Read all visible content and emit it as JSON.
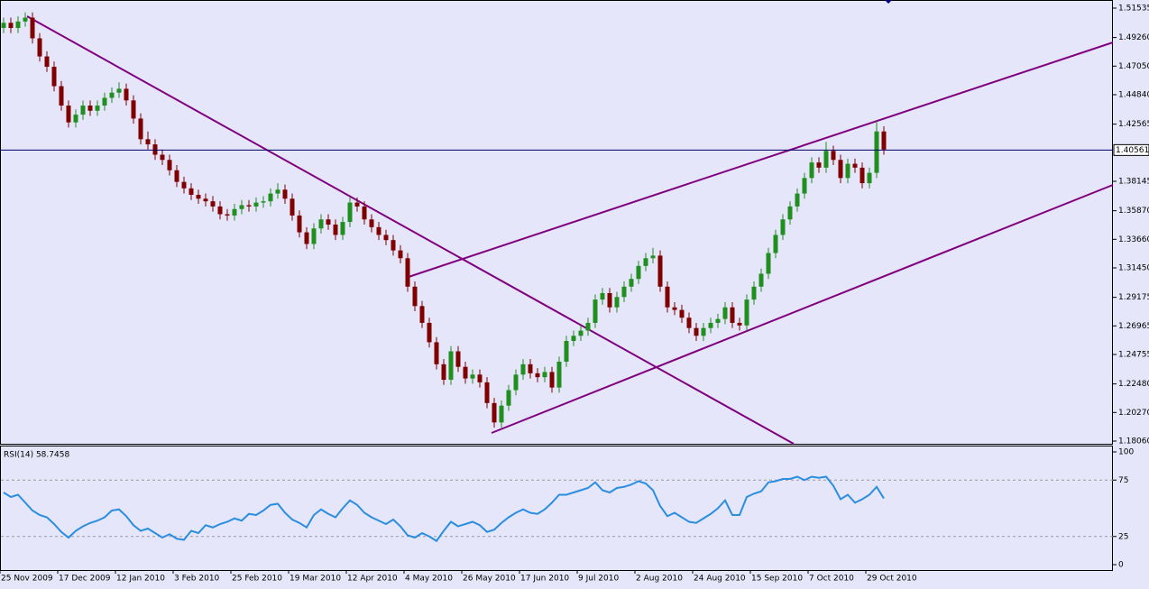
{
  "chart_data": [
    {
      "type": "candlestick",
      "bull_color": "#1f8f1f",
      "bear_color": "#800000",
      "current_price": 1.40561,
      "current_price_color": "#000066",
      "ylim": [
        1.17851,
        1.52163
      ],
      "yticks": [
        1.51535,
        {
          "value": 1.4926,
          "label": "1.49260"
        },
        {
          "value": 1.4705,
          "label": "1.47050"
        },
        {
          "value": 1.4484,
          "label": "1.44840"
        },
        1.42565,
        1.38145,
        {
          "value": 1.3587,
          "label": "1.35870"
        },
        {
          "value": 1.3366,
          "label": "1.33660"
        },
        {
          "value": 1.3145,
          "label": "1.31450"
        },
        1.29175,
        1.26965,
        1.24755,
        {
          "value": 1.2248,
          "label": "1.22480"
        },
        {
          "value": 1.2027,
          "label": "1.20270"
        },
        {
          "value": 1.1806,
          "label": "1.18060"
        }
      ],
      "xticks": [
        {
          "value": -0.5,
          "label": "25 Nov 2009"
        },
        {
          "value": 7.5,
          "label": "17 Dec 2009"
        },
        {
          "value": 15.5,
          "label": "12 Jan 2010"
        },
        {
          "value": 23.5,
          "label": "3 Feb 2010"
        },
        {
          "value": 31.5,
          "label": "25 Feb 2010"
        },
        {
          "value": 39.5,
          "label": "19 Mar 2010"
        },
        {
          "value": 47.5,
          "label": "12 Apr 2010"
        },
        {
          "value": 55.5,
          "label": "4 May 2010"
        },
        {
          "value": 63.5,
          "label": "26 May 2010"
        },
        {
          "value": 71.5,
          "label": "17 Jun 2010"
        },
        {
          "value": 79.5,
          "label": "9 Jul 2010"
        },
        {
          "value": 87.5,
          "label": "2 Aug 2010"
        },
        {
          "value": 95.5,
          "label": "24 Aug 2010"
        },
        {
          "value": 103.5,
          "label": "15 Sep 2010"
        },
        {
          "value": 111.5,
          "label": "7 Oct 2010"
        },
        {
          "value": 119.5,
          "label": "29 Oct 2010"
        }
      ],
      "ohlc": [
        [
          1.5,
          1.508,
          1.496,
          1.504
        ],
        [
          1.504,
          1.508,
          1.496,
          1.5
        ],
        [
          1.5,
          1.509,
          1.496,
          1.505
        ],
        [
          1.505,
          1.512,
          1.501,
          1.508
        ],
        [
          1.508,
          1.512,
          1.488,
          1.492
        ],
        [
          1.492,
          1.496,
          1.474,
          1.478
        ],
        [
          1.478,
          1.482,
          1.466,
          1.47
        ],
        [
          1.47,
          1.474,
          1.451,
          1.455
        ],
        [
          1.455,
          1.459,
          1.436,
          1.44
        ],
        [
          1.44,
          1.444,
          1.423,
          1.427
        ],
        [
          1.427,
          1.437,
          1.423,
          1.433
        ],
        [
          1.433,
          1.444,
          1.429,
          1.44
        ],
        [
          1.44,
          1.444,
          1.432,
          1.436
        ],
        [
          1.436,
          1.444,
          1.432,
          1.44
        ],
        [
          1.44,
          1.45,
          1.436,
          1.446
        ],
        [
          1.446,
          1.454,
          1.442,
          1.45
        ],
        [
          1.45,
          1.458,
          1.446,
          1.453
        ],
        [
          1.453,
          1.457,
          1.44,
          1.444
        ],
        [
          1.444,
          1.448,
          1.426,
          1.43
        ],
        [
          1.43,
          1.434,
          1.41,
          1.414
        ],
        [
          1.414,
          1.42,
          1.406,
          1.41
        ],
        [
          1.41,
          1.414,
          1.398,
          1.402
        ],
        [
          1.402,
          1.406,
          1.394,
          1.398
        ],
        [
          1.398,
          1.402,
          1.386,
          1.39
        ],
        [
          1.39,
          1.394,
          1.377,
          1.381
        ],
        [
          1.381,
          1.385,
          1.372,
          1.376
        ],
        [
          1.376,
          1.38,
          1.367,
          1.371
        ],
        [
          1.371,
          1.375,
          1.364,
          1.368
        ],
        [
          1.368,
          1.372,
          1.362,
          1.366
        ],
        [
          1.366,
          1.37,
          1.358,
          1.362
        ],
        [
          1.362,
          1.366,
          1.352,
          1.356
        ],
        [
          1.356,
          1.36,
          1.351,
          1.355
        ],
        [
          1.355,
          1.364,
          1.351,
          1.36
        ],
        [
          1.36,
          1.367,
          1.356,
          1.363
        ],
        [
          1.363,
          1.367,
          1.358,
          1.362
        ],
        [
          1.362,
          1.369,
          1.358,
          1.365
        ],
        [
          1.365,
          1.37,
          1.361,
          1.366
        ],
        [
          1.366,
          1.376,
          1.362,
          1.372
        ],
        [
          1.372,
          1.38,
          1.368,
          1.375
        ],
        [
          1.375,
          1.379,
          1.364,
          1.368
        ],
        [
          1.368,
          1.372,
          1.351,
          1.355
        ],
        [
          1.355,
          1.359,
          1.338,
          1.342
        ],
        [
          1.342,
          1.346,
          1.329,
          1.333
        ],
        [
          1.333,
          1.349,
          1.329,
          1.345
        ],
        [
          1.345,
          1.356,
          1.341,
          1.352
        ],
        [
          1.352,
          1.356,
          1.344,
          1.348
        ],
        [
          1.348,
          1.352,
          1.336,
          1.34
        ],
        [
          1.34,
          1.354,
          1.336,
          1.35
        ],
        [
          1.35,
          1.369,
          1.346,
          1.365
        ],
        [
          1.365,
          1.369,
          1.358,
          1.362
        ],
        [
          1.362,
          1.366,
          1.348,
          1.352
        ],
        [
          1.352,
          1.356,
          1.342,
          1.346
        ],
        [
          1.346,
          1.35,
          1.336,
          1.34
        ],
        [
          1.34,
          1.344,
          1.332,
          1.336
        ],
        [
          1.336,
          1.34,
          1.324,
          1.328
        ],
        [
          1.328,
          1.332,
          1.318,
          1.322
        ],
        [
          1.322,
          1.326,
          1.296,
          1.3
        ],
        [
          1.3,
          1.304,
          1.281,
          1.285
        ],
        [
          1.285,
          1.289,
          1.268,
          1.272
        ],
        [
          1.272,
          1.276,
          1.253,
          1.257
        ],
        [
          1.257,
          1.261,
          1.236,
          1.24
        ],
        [
          1.24,
          1.244,
          1.224,
          1.228
        ],
        [
          1.228,
          1.254,
          1.224,
          1.25
        ],
        [
          1.25,
          1.254,
          1.234,
          1.238
        ],
        [
          1.238,
          1.242,
          1.225,
          1.229
        ],
        [
          1.229,
          1.236,
          1.225,
          1.232
        ],
        [
          1.232,
          1.236,
          1.222,
          1.226
        ],
        [
          1.226,
          1.23,
          1.206,
          1.21
        ],
        [
          1.21,
          1.214,
          1.191,
          1.195
        ],
        [
          1.195,
          1.212,
          1.191,
          1.208
        ],
        [
          1.208,
          1.224,
          1.204,
          1.22
        ],
        [
          1.22,
          1.236,
          1.216,
          1.232
        ],
        [
          1.232,
          1.244,
          1.228,
          1.24
        ],
        [
          1.24,
          1.244,
          1.229,
          1.233
        ],
        [
          1.233,
          1.237,
          1.226,
          1.23
        ],
        [
          1.23,
          1.238,
          1.226,
          1.234
        ],
        [
          1.234,
          1.238,
          1.218,
          1.222
        ],
        [
          1.222,
          1.246,
          1.218,
          1.242
        ],
        [
          1.242,
          1.262,
          1.238,
          1.258
        ],
        [
          1.258,
          1.266,
          1.254,
          1.262
        ],
        [
          1.262,
          1.27,
          1.258,
          1.266
        ],
        [
          1.266,
          1.276,
          1.262,
          1.272
        ],
        [
          1.272,
          1.294,
          1.268,
          1.29
        ],
        [
          1.29,
          1.299,
          1.286,
          1.295
        ],
        [
          1.295,
          1.299,
          1.28,
          1.284
        ],
        [
          1.284,
          1.296,
          1.28,
          1.292
        ],
        [
          1.292,
          1.304,
          1.288,
          1.3
        ],
        [
          1.3,
          1.31,
          1.296,
          1.306
        ],
        [
          1.306,
          1.32,
          1.302,
          1.316
        ],
        [
          1.316,
          1.326,
          1.312,
          1.322
        ],
        [
          1.322,
          1.33,
          1.318,
          1.324
        ],
        [
          1.324,
          1.328,
          1.296,
          1.3
        ],
        [
          1.3,
          1.304,
          1.28,
          1.284
        ],
        [
          1.284,
          1.288,
          1.278,
          1.282
        ],
        [
          1.282,
          1.286,
          1.272,
          1.276
        ],
        [
          1.276,
          1.28,
          1.264,
          1.268
        ],
        [
          1.268,
          1.272,
          1.258,
          1.262
        ],
        [
          1.262,
          1.272,
          1.258,
          1.268
        ],
        [
          1.268,
          1.276,
          1.264,
          1.272
        ],
        [
          1.272,
          1.279,
          1.268,
          1.275
        ],
        [
          1.275,
          1.288,
          1.271,
          1.284
        ],
        [
          1.284,
          1.288,
          1.268,
          1.272
        ],
        [
          1.272,
          1.276,
          1.266,
          1.27
        ],
        [
          1.27,
          1.294,
          1.266,
          1.29
        ],
        [
          1.29,
          1.304,
          1.286,
          1.3
        ],
        [
          1.3,
          1.314,
          1.296,
          1.31
        ],
        [
          1.31,
          1.33,
          1.306,
          1.326
        ],
        [
          1.326,
          1.344,
          1.322,
          1.34
        ],
        [
          1.34,
          1.356,
          1.336,
          1.352
        ],
        [
          1.352,
          1.366,
          1.348,
          1.362
        ],
        [
          1.362,
          1.376,
          1.358,
          1.372
        ],
        [
          1.372,
          1.388,
          1.368,
          1.384
        ],
        [
          1.384,
          1.4,
          1.38,
          1.396
        ],
        [
          1.396,
          1.4,
          1.388,
          1.392
        ],
        [
          1.392,
          1.412,
          1.388,
          1.405
        ],
        [
          1.405,
          1.409,
          1.394,
          1.398
        ],
        [
          1.398,
          1.402,
          1.38,
          1.384
        ],
        [
          1.384,
          1.399,
          1.38,
          1.395
        ],
        [
          1.395,
          1.399,
          1.388,
          1.392
        ],
        [
          1.392,
          1.396,
          1.376,
          1.38
        ],
        [
          1.38,
          1.392,
          1.376,
          1.388
        ],
        [
          1.388,
          1.428,
          1.384,
          1.42
        ],
        [
          1.42,
          1.424,
          1.402,
          1.406
        ]
      ]
    },
    {
      "type": "line",
      "title": "RSI(14) 58.7458",
      "color": "#2a8ee0",
      "ylim": [
        -4.8,
        104.8
      ],
      "yticks": [
        0,
        25,
        75,
        100
      ],
      "levels": [
        25,
        75
      ],
      "values": [
        64,
        60,
        62,
        55,
        48,
        44,
        42,
        36,
        29,
        24,
        30,
        34,
        37,
        39,
        42,
        48,
        49,
        43,
        35,
        30,
        32,
        28,
        24,
        27,
        23,
        22,
        30,
        28,
        35,
        33,
        36,
        38,
        41,
        39,
        45,
        44,
        48,
        53,
        54,
        46,
        40,
        37,
        33,
        44,
        49,
        45,
        42,
        50,
        57,
        53,
        46,
        42,
        39,
        36,
        40,
        34,
        26,
        24,
        28,
        25,
        21,
        30,
        38,
        34,
        36,
        38,
        35,
        29,
        31,
        37,
        42,
        46,
        49,
        46,
        45,
        49,
        55,
        62,
        62,
        64,
        66,
        68,
        73,
        66,
        64,
        68,
        69,
        71,
        74,
        72,
        66,
        52,
        43,
        46,
        42,
        38,
        37,
        41,
        45,
        50,
        57,
        44,
        44,
        60,
        63,
        65,
        73,
        74,
        76,
        76,
        78,
        75,
        78,
        77,
        78,
        70,
        58,
        62,
        55,
        58,
        62,
        69,
        58.7458
      ]
    }
  ]
}
